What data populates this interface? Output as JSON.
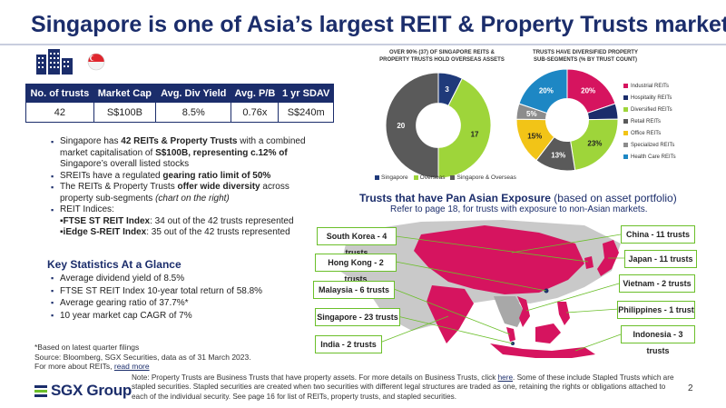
{
  "title": "Singapore is one of Asia’s largest REIT & Property Trusts markets",
  "stats_table": {
    "headers": [
      "No. of trusts",
      "Market Cap",
      "Avg. Div Yield",
      "Avg. P/B",
      "1 yr SDAV"
    ],
    "values": [
      "42",
      "S$100B",
      "8.5%",
      "0.76x",
      "S$240m"
    ]
  },
  "bullets": {
    "b1_a": "Singapore has ",
    "b1_b": "42 REITs & Property Trusts",
    "b1_c": " with a combined market capitalisation of ",
    "b1_d": "S$100B, representing c.12% of",
    "b1_e": " Singapore’s overall listed stocks",
    "b2_a": "SREITs have a regulated ",
    "b2_b": "gearing ratio limit of 50%",
    "b3_a": "The REITs & Property Trusts ",
    "b3_b": "offer wide diversity",
    "b3_c": " across property sub-segments ",
    "b3_d": "(chart on the right)",
    "b4": "REIT Indices:",
    "s1_a": "FTSE ST REIT Index",
    "s1_b": ": 34 out of the 42 trusts represented",
    "s2_a": "iEdge S-REIT Index",
    "s2_b": ": 35 out of the 42 trusts represented"
  },
  "key_stats": {
    "title": "Key Statistics At a Glance",
    "items": [
      "Average dividend yield of 8.5%",
      "FTSE ST REIT Index 10-year total return of 58.8%",
      "Average gearing ratio of 37.7%*",
      "10 year market cap CAGR of 7%"
    ]
  },
  "footnote": {
    "l1": "*Based on latest quarter filings",
    "l2": "Source: Bloomberg, SGX Securities, data as of 31 March 2023.",
    "l3": "For more about REITs, ",
    "l3_link": "read more"
  },
  "logo": {
    "text": "SGX Group"
  },
  "note": {
    "a": "Note: Property Trusts are Business Trusts that have property assets. For more details on Business Trusts, click ",
    "link": "here",
    "b": ". Some of these include Stapled Trusts which are stapled securities. Stapled securities are created when two securities with different legal structures are traded as one, retaining the rights or obligations attached to each of the individual security. See page 16 for list of REITs, property trusts, and stapled securities."
  },
  "page_number": "2",
  "map": {
    "title_bold": "Trusts that have Pan Asian Exposure",
    "title_rest": " (based on asset portfolio)",
    "subtitle": "Refer to page 18, for trusts with exposure to non-Asian markets.",
    "tags": [
      "South Korea - 4 trusts",
      "Hong Kong - 2 trusts",
      "Malaysia - 6 trusts",
      "Singapore - 23 trusts",
      "India - 2 trusts",
      "China - 11 trusts",
      "Japan - 11 trusts",
      "Vietnam - 2 trusts",
      "Philippines - 1 trust",
      "Indonesia - 3 trusts"
    ]
  },
  "colors": {
    "navy": "#1b2d6b",
    "singapore": "#1f3a7a",
    "overseas": "#9ed53a",
    "sg_overseas": "#5a5a5a",
    "industrial": "#d6145f",
    "hospitality": "#c7a1b4",
    "diversified": "#9ed53a",
    "retail": "#5a5a5a",
    "office": "#f2c417",
    "specialized": "#8c8c8c",
    "healthcare": "#1d87c4",
    "green_border": "#6bbf2a"
  },
  "chart_data": [
    {
      "type": "pie",
      "title": "OVER 90% (37) OF SINGAPORE REITS & PROPERTY TRUSTS HOLD OVERSEAS ASSETS",
      "labels": [
        "Singapore",
        "Overseas",
        "Singapore & Overseas"
      ],
      "values": [
        3,
        17,
        20
      ],
      "colors": [
        "#1f3a7a",
        "#9ed53a",
        "#5a5a5a"
      ],
      "donut": true,
      "legend": "bottom"
    },
    {
      "type": "pie",
      "title": "TRUSTS HAVE DIVERSIFIED PROPERTY SUB-SEGMENTS (% BY TRUST COUNT)",
      "labels": [
        "Industrial REITs",
        "Hospitality REITs",
        "Diversified REITs",
        "Retail REITs",
        "Office REITs",
        "Specialized REITs",
        "Health Care REITs"
      ],
      "values": [
        20,
        5,
        23,
        13,
        15,
        5,
        20
      ],
      "value_labels": [
        "20%",
        "",
        "23%",
        "13%",
        "15%",
        "5%",
        "20%"
      ],
      "colors": [
        "#d6145f",
        "#1b2d6b",
        "#9ed53a",
        "#5a5a5a",
        "#f2c417",
        "#8c8c8c",
        "#1d87c4"
      ],
      "donut": true,
      "legend": "right"
    }
  ]
}
